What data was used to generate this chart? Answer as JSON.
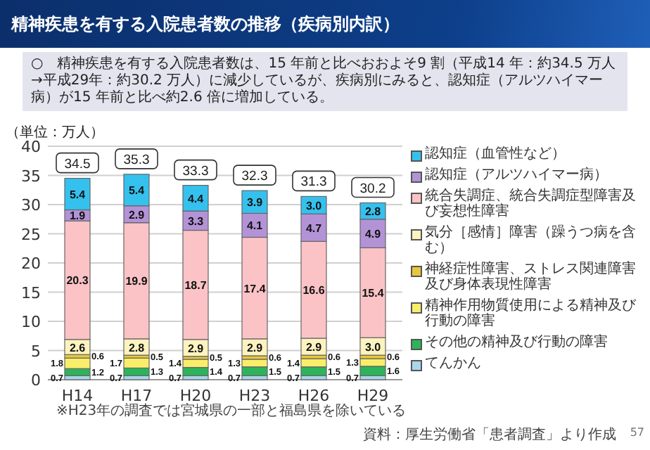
{
  "chart_data": {
    "type": "bar",
    "stacked": true,
    "title": "精神疾患を有する入院患者数の推移（疾病別内訳）",
    "subtitle": "○　精神疾患を有する入院患者数は、15 年前と比べおおよそ9 割（平成14 年：約34.5 万人→平成29年：約30.2 万人）に減少しているが、疾病別にみると、認知症（アルツハイマー病）が15 年前と比べ約2.6 倍に増加している。",
    "ylabel": "（単位：万人）",
    "categories": [
      "H14",
      "H17",
      "H20",
      "H23",
      "H26",
      "H29"
    ],
    "series": [
      {
        "name": "てんかん",
        "color": "#a9d6ea",
        "values": [
          0.7,
          0.7,
          0.7,
          0.7,
          0.7,
          0.7
        ],
        "value_labels": [
          "0.7",
          "0.7",
          "0.7",
          "0.7",
          "0.7",
          "0.7"
        ]
      },
      {
        "name": "その他の精神及び行動の障害",
        "color": "#2cb45a",
        "values": [
          1.2,
          1.3,
          1.4,
          1.5,
          1.5,
          1.6
        ],
        "value_labels": [
          "1.2",
          "1.3",
          "1.4",
          "1.5",
          "1.5",
          "1.6"
        ]
      },
      {
        "name": "精神作用物質使用による精神及び行動の障害",
        "color": "#f9ee6a",
        "values": [
          1.8,
          1.7,
          1.4,
          1.3,
          1.4,
          1.3
        ],
        "value_labels": [
          "1.8",
          "1.7",
          "1.4",
          "1.3",
          "1.4",
          "1.3"
        ]
      },
      {
        "name": "神経症性障害、ストレス関連障害及び身体表現性障害",
        "color": "#e8c83a",
        "values": [
          0.6,
          0.5,
          0.5,
          0.6,
          0.6,
          0.6
        ],
        "value_labels": [
          "0.6",
          "0.5",
          "0.5",
          "0.6",
          "0.6",
          "0.6"
        ]
      },
      {
        "name": "気分［感情］障害（躁うつ病を含む）",
        "color": "#fcf3bf",
        "values": [
          2.6,
          2.8,
          2.9,
          2.9,
          2.9,
          3.0
        ],
        "value_labels": [
          "2.6",
          "2.8",
          "2.9",
          "2.9",
          "2.9",
          "3.0"
        ]
      },
      {
        "name": "統合失調症、統合失調症型障害及び妄想性障害",
        "color": "#fbc3c6",
        "values": [
          20.3,
          19.9,
          18.7,
          17.4,
          16.6,
          15.4
        ],
        "value_labels": [
          "20.3",
          "19.9",
          "18.7",
          "17.4",
          "16.6",
          "15.4"
        ]
      },
      {
        "name": "認知症（アルツハイマー病）",
        "color": "#b393d6",
        "values": [
          1.9,
          2.9,
          3.3,
          4.1,
          4.7,
          4.9
        ],
        "value_labels": [
          "1.9",
          "2.9",
          "3.3",
          "4.1",
          "4.7",
          "4.9"
        ]
      },
      {
        "name": "認知症（血管性など）",
        "color": "#35c1ee",
        "values": [
          5.4,
          5.4,
          4.4,
          3.9,
          3.0,
          2.8
        ],
        "value_labels": [
          "5.4",
          "5.4",
          "4.4",
          "3.9",
          "3.0",
          "2.8"
        ]
      }
    ],
    "totals": [
      "34.5",
      "35.3",
      "33.3",
      "32.3",
      "31.3",
      "30.2"
    ],
    "ylim": [
      0,
      40
    ],
    "yticks": [
      0,
      5,
      10,
      15,
      20,
      25,
      30,
      35,
      40
    ],
    "grid": "y",
    "legend": "right",
    "annotations": [
      "※H23年の調査では宮城県の一部と福島県を除いている",
      "資料：厚生労働省「患者調査」より作成",
      "57"
    ]
  }
}
